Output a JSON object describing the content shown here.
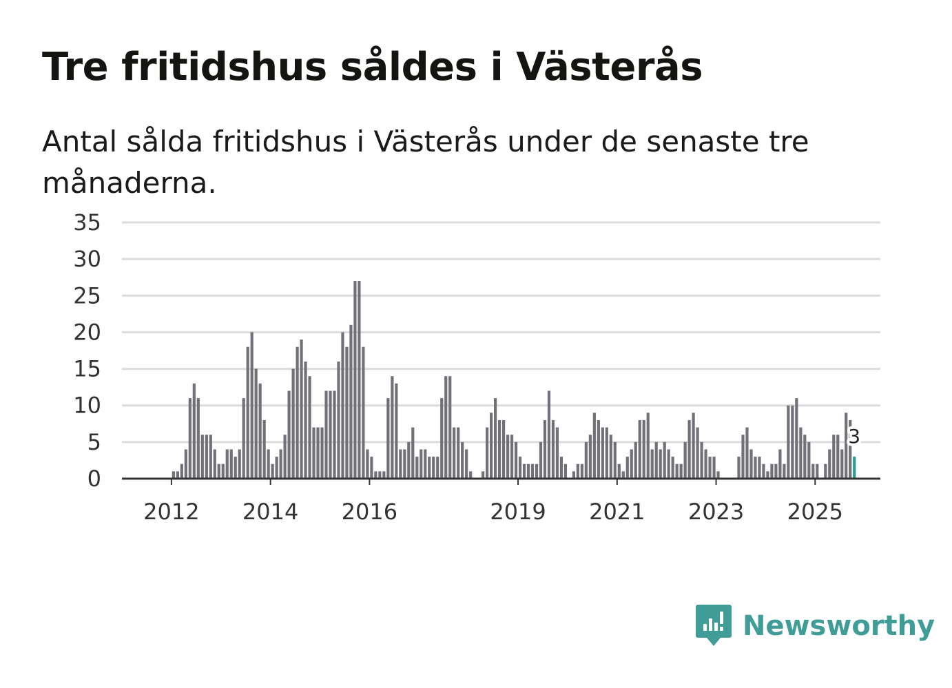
{
  "title": "Tre fritidshus såldes i Västerås",
  "subtitle": "Antal sålda fritidshus i Västerås under de senaste tre månaderna.",
  "brand": {
    "name": "Newsworthy",
    "icon": "newsworthy-logo-icon",
    "color": "#3f9c97"
  },
  "colors": {
    "bar": "#737178",
    "highlight": "#2a9d96",
    "grid": "#dcdcdc",
    "axis": "#333333"
  },
  "chart_data": {
    "type": "bar",
    "title": "Tre fritidshus såldes i Västerås",
    "xlabel": "",
    "ylabel": "",
    "ylim": [
      0,
      35
    ],
    "yticks": [
      0,
      5,
      10,
      15,
      20,
      25,
      30,
      35
    ],
    "grid": true,
    "x_start": "2011-01",
    "x_end": "2026-05",
    "xtick_labels": [
      {
        "label": "2012",
        "at": "2012-01"
      },
      {
        "label": "2014",
        "at": "2014-01"
      },
      {
        "label": "2016",
        "at": "2016-01"
      },
      {
        "label": "2019",
        "at": "2019-01"
      },
      {
        "label": "2021",
        "at": "2021-01"
      },
      {
        "label": "2023",
        "at": "2023-01"
      },
      {
        "label": "2025",
        "at": "2025-01"
      }
    ],
    "series": [
      {
        "name": "Antal sålda fritidshus",
        "start": "2012-01",
        "values": [
          1,
          1,
          2,
          4,
          11,
          13,
          11,
          6,
          6,
          6,
          4,
          2,
          2,
          4,
          4,
          3,
          4,
          11,
          18,
          20,
          15,
          13,
          8,
          4,
          2,
          3,
          4,
          6,
          12,
          15,
          18,
          19,
          16,
          14,
          7,
          7,
          7,
          12,
          12,
          12,
          16,
          20,
          18,
          21,
          27,
          27,
          18,
          4,
          3,
          1,
          1,
          1,
          11,
          14,
          13,
          4,
          4,
          5,
          7,
          3,
          4,
          4,
          3,
          3,
          3,
          11,
          14,
          14,
          7,
          7,
          5,
          4,
          1,
          0,
          0,
          1,
          7,
          9,
          11,
          8,
          8,
          6,
          6,
          5,
          3,
          2,
          2,
          2,
          2,
          5,
          8,
          12,
          8,
          7,
          3,
          2,
          0,
          1,
          2,
          2,
          5,
          6,
          9,
          8,
          7,
          7,
          6,
          5,
          2,
          1,
          3,
          4,
          5,
          8,
          8,
          9,
          4,
          5,
          4,
          5,
          4,
          3,
          2,
          2,
          5,
          8,
          9,
          7,
          5,
          4,
          3,
          3,
          1,
          0,
          0,
          0,
          0,
          3,
          6,
          7,
          4,
          3,
          3,
          2,
          1,
          2,
          2,
          4,
          2,
          10,
          10,
          11,
          7,
          6,
          5,
          2,
          2,
          0,
          2,
          4,
          6,
          6,
          4,
          9,
          8,
          3
        ]
      }
    ],
    "highlight": {
      "label": "3",
      "value": 3,
      "index": 165
    }
  }
}
